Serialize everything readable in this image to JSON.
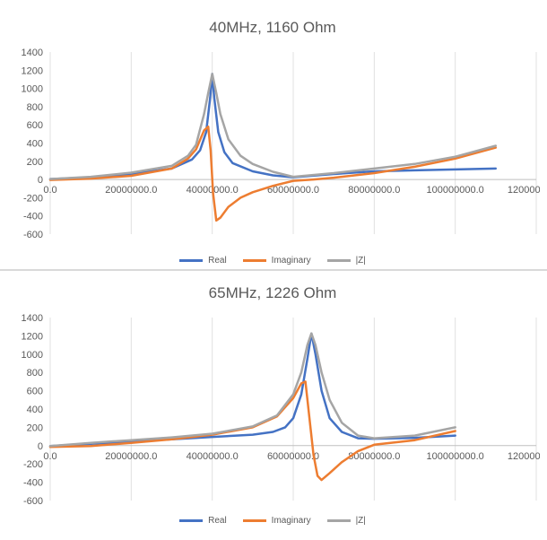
{
  "chart_data": [
    {
      "type": "line",
      "title": "40MHz, 1160 Ohm",
      "xlabel": "",
      "ylabel": "",
      "xlim": [
        0,
        120000000
      ],
      "ylim": [
        -600,
        1400
      ],
      "yticks": [
        "1400",
        "1200",
        "1000",
        "800",
        "600",
        "400",
        "200",
        "0",
        "-200",
        "-400",
        "-600"
      ],
      "xticks": [
        "0.0",
        "20000000.0",
        "40000000.0",
        "60000000.0",
        "80000000.0",
        "100000000.0",
        "120000000.0"
      ],
      "grid": "vertical",
      "legend": "bottom",
      "series": [
        {
          "name": "Real",
          "color": "#4472c4",
          "x": [
            0,
            10000000,
            20000000,
            30000000,
            35000000,
            37000000,
            38500000,
            39500000,
            40000000,
            40500000,
            41500000,
            43000000,
            45000000,
            50000000,
            55000000,
            60000000,
            70000000,
            80000000,
            90000000,
            100000000,
            110000000
          ],
          "y": [
            5,
            25,
            60,
            120,
            220,
            320,
            520,
            900,
            1160,
            900,
            520,
            300,
            180,
            90,
            45,
            25,
            60,
            90,
            100,
            110,
            120
          ]
        },
        {
          "name": "Imaginary",
          "color": "#ed7d31",
          "x": [
            0,
            10000000,
            20000000,
            30000000,
            34000000,
            36000000,
            38000000,
            39000000,
            39600000,
            40200000,
            41000000,
            42000000,
            44000000,
            47000000,
            50000000,
            55000000,
            60000000,
            65000000,
            70000000,
            80000000,
            90000000,
            100000000,
            110000000
          ],
          "y": [
            -5,
            10,
            40,
            120,
            230,
            330,
            540,
            580,
            320,
            -150,
            -450,
            -420,
            -300,
            -200,
            -140,
            -70,
            -15,
            0,
            20,
            70,
            140,
            230,
            350
          ]
        },
        {
          "name": "|Z|",
          "color": "#a5a5a5",
          "x": [
            0,
            10000000,
            20000000,
            30000000,
            34000000,
            36000000,
            38000000,
            39000000,
            40000000,
            41000000,
            42000000,
            44000000,
            47000000,
            50000000,
            55000000,
            60000000,
            70000000,
            80000000,
            90000000,
            100000000,
            110000000
          ],
          "y": [
            5,
            30,
            75,
            150,
            260,
            380,
            720,
            950,
            1160,
            950,
            720,
            440,
            260,
            170,
            85,
            30,
            70,
            120,
            170,
            250,
            370
          ]
        }
      ]
    },
    {
      "type": "line",
      "title": "65MHz, 1226 Ohm",
      "xlabel": "",
      "ylabel": "",
      "xlim": [
        0,
        120000000
      ],
      "ylim": [
        -600,
        1400
      ],
      "yticks": [
        "1400",
        "1200",
        "1000",
        "800",
        "600",
        "400",
        "200",
        "0",
        "-200",
        "-400",
        "-600"
      ],
      "xticks": [
        "0.0",
        "20000000.0",
        "40000000.0",
        "60000000.0",
        "80000000.0",
        "100000000.0",
        "120000000.0"
      ],
      "grid": "vertical",
      "legend": "bottom",
      "series": [
        {
          "name": "Real",
          "color": "#4472c4",
          "x": [
            0,
            10000000,
            20000000,
            30000000,
            40000000,
            50000000,
            55000000,
            58000000,
            60000000,
            62000000,
            63500000,
            64500000,
            65500000,
            67000000,
            69000000,
            72000000,
            76000000,
            80000000,
            90000000,
            100000000
          ],
          "y": [
            -5,
            20,
            45,
            70,
            95,
            120,
            150,
            200,
            300,
            560,
            950,
            1226,
            1000,
            600,
            300,
            150,
            80,
            75,
            85,
            110
          ]
        },
        {
          "name": "Imaginary",
          "color": "#ed7d31",
          "x": [
            0,
            10000000,
            20000000,
            30000000,
            40000000,
            50000000,
            56000000,
            60000000,
            62000000,
            63000000,
            64000000,
            65000000,
            66000000,
            67000000,
            69000000,
            72000000,
            76000000,
            80000000,
            90000000,
            100000000
          ],
          "y": [
            -15,
            -5,
            30,
            70,
            120,
            200,
            320,
            520,
            680,
            700,
            300,
            -100,
            -330,
            -375,
            -300,
            -180,
            -60,
            10,
            60,
            160
          ]
        },
        {
          "name": "|Z|",
          "color": "#a5a5a5",
          "x": [
            0,
            10000000,
            20000000,
            30000000,
            40000000,
            50000000,
            56000000,
            60000000,
            62000000,
            63500000,
            64500000,
            65500000,
            67000000,
            69000000,
            72000000,
            76000000,
            80000000,
            90000000,
            100000000
          ],
          "y": [
            -5,
            30,
            60,
            90,
            130,
            210,
            330,
            560,
            800,
            1100,
            1226,
            1100,
            800,
            500,
            250,
            110,
            80,
            110,
            200
          ]
        }
      ]
    }
  ]
}
